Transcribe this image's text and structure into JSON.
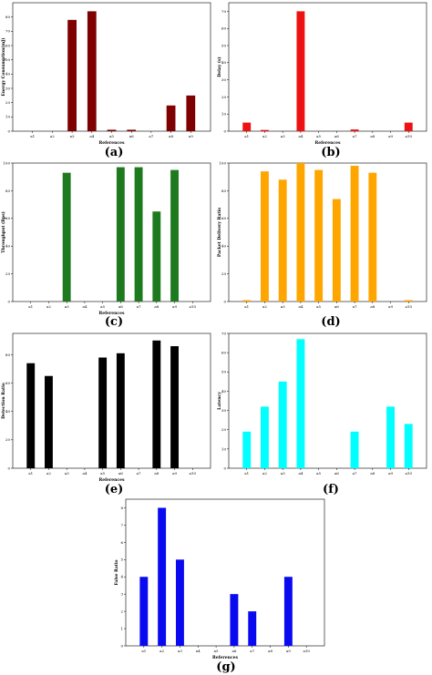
{
  "chart_data": [
    {
      "panel": "(a)",
      "type": "bar",
      "color": "#7f0000",
      "categories": [
        "a1",
        "a2",
        "a3",
        "a4",
        "a5",
        "a6",
        "a7",
        "a8",
        "a9"
      ],
      "values": [
        0,
        0,
        78,
        84,
        1,
        1,
        0,
        18,
        25
      ],
      "ylim": [
        0,
        90
      ],
      "yticks": [
        0,
        10,
        20,
        30,
        40,
        50,
        60,
        70,
        80
      ],
      "xlabel": "References",
      "ylabel": "Energy Consumption(mJ)"
    },
    {
      "panel": "(b)",
      "type": "bar",
      "color": "#ee1111",
      "categories": [
        "a1",
        "a2",
        "a3",
        "a4",
        "a5",
        "a6",
        "a7",
        "a8",
        "a9",
        "a10"
      ],
      "values": [
        5,
        0.7,
        0,
        70,
        0,
        0,
        1,
        0,
        0,
        5
      ],
      "ylim": [
        0,
        75
      ],
      "yticks": [
        0,
        10,
        20,
        30,
        40,
        50,
        60,
        70
      ],
      "xlabel": "References",
      "ylabel": "Delay (s)"
    },
    {
      "panel": "(c)",
      "type": "bar",
      "color": "#1e7a1e",
      "categories": [
        "a1",
        "a2",
        "a3",
        "a4",
        "a5",
        "a6",
        "a7",
        "a8",
        "a9",
        "a10"
      ],
      "values": [
        0,
        0,
        93,
        0,
        0,
        97,
        97,
        65,
        95,
        0
      ],
      "ylim": [
        0,
        100
      ],
      "yticks": [
        0,
        20,
        40,
        60,
        80,
        100
      ],
      "xlabel": "References",
      "ylabel": "Throughput (Bps)"
    },
    {
      "panel": "(d)",
      "type": "bar",
      "color": "#ffa500",
      "categories": [
        "a1",
        "a2",
        "a3",
        "a4",
        "a5",
        "a6",
        "a7",
        "a8",
        "a9",
        "a10"
      ],
      "values": [
        1,
        94,
        88,
        100,
        95,
        74,
        98,
        93,
        0,
        1
      ],
      "ylim": [
        0,
        100
      ],
      "yticks": [
        0,
        20,
        40,
        60,
        80,
        100
      ],
      "xlabel": "",
      "ylabel": "Packet Delivery Ratio"
    },
    {
      "panel": "(e)",
      "type": "bar",
      "color": "#000000",
      "categories": [
        "a1",
        "a2",
        "a3",
        "a4",
        "a5",
        "a6",
        "a7",
        "a8",
        "a9",
        "a10"
      ],
      "values": [
        74,
        65,
        0,
        0,
        78,
        81,
        0,
        90,
        86,
        0
      ],
      "ylim": [
        0,
        95
      ],
      "yticks": [
        0,
        20,
        40,
        60,
        80
      ],
      "xlabel": "References",
      "ylabel": "Detection Ratio"
    },
    {
      "panel": "(f)",
      "type": "bar",
      "color": "#00ffff",
      "categories": [
        "a1",
        "a2",
        "a3",
        "a4",
        "a5",
        "a6",
        "a7",
        "a8",
        "a9",
        "a10"
      ],
      "values": [
        19,
        32,
        45,
        67,
        0,
        0,
        19,
        0,
        32,
        23
      ],
      "ylim": [
        0,
        70
      ],
      "yticks": [
        0,
        10,
        20,
        30,
        40,
        50,
        60,
        70
      ],
      "xlabel": "",
      "ylabel": "Latency"
    },
    {
      "panel": "(g)",
      "type": "bar",
      "color": "#0a0af0",
      "categories": [
        "a1",
        "a2",
        "a3",
        "a4",
        "a5",
        "a6",
        "a7",
        "a8",
        "a9",
        "a10"
      ],
      "values": [
        4,
        8,
        5,
        0,
        0,
        3,
        2,
        0,
        4,
        0
      ],
      "ylim": [
        0,
        8.5
      ],
      "yticks": [
        0,
        1,
        2,
        3,
        4,
        5,
        6,
        7,
        8
      ],
      "xlabel": "References",
      "ylabel": "False Ratio"
    }
  ]
}
